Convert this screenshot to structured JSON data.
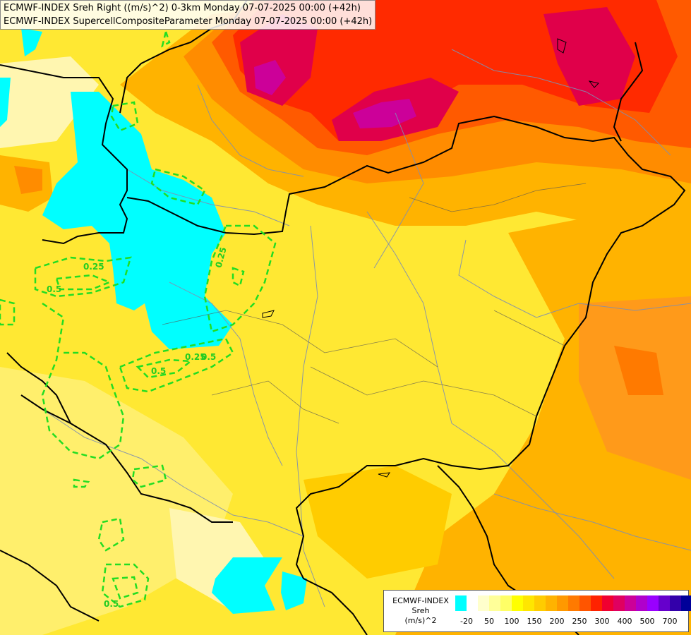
{
  "header": {
    "line1": "ECMWF-INDEX Sreh Right ((m/s)^2) 0-3km Monday 07-07-2025 00:00 (+42h)",
    "line2": "ECMWF-INDEX SupercellCompositeParameter Monday 07-07-2025 00:00 (+42h)"
  },
  "contour_labels": [
    "0.25",
    "0.25",
    "0.25",
    "0.5",
    "0.5",
    "0.5",
    "0.5"
  ],
  "legend": {
    "title_line1": "ECMWF-INDEX",
    "title_line2": "Sreh",
    "title_line3": "(m/s)^2",
    "colors": [
      "#00ffff",
      "#ffffff",
      "#ffffcc",
      "#ffff99",
      "#ffff66",
      "#ffff00",
      "#ffe600",
      "#ffcc00",
      "#ffb300",
      "#ff9900",
      "#ff7a00",
      "#ff5500",
      "#ff2200",
      "#f00030",
      "#e00060",
      "#cc0099",
      "#b000cc",
      "#9900ff",
      "#6600cc",
      "#3300aa",
      "#000099"
    ],
    "ticks": [
      "-20",
      "50",
      "100",
      "150",
      "200",
      "250",
      "300",
      "400",
      "500",
      "700"
    ]
  }
}
